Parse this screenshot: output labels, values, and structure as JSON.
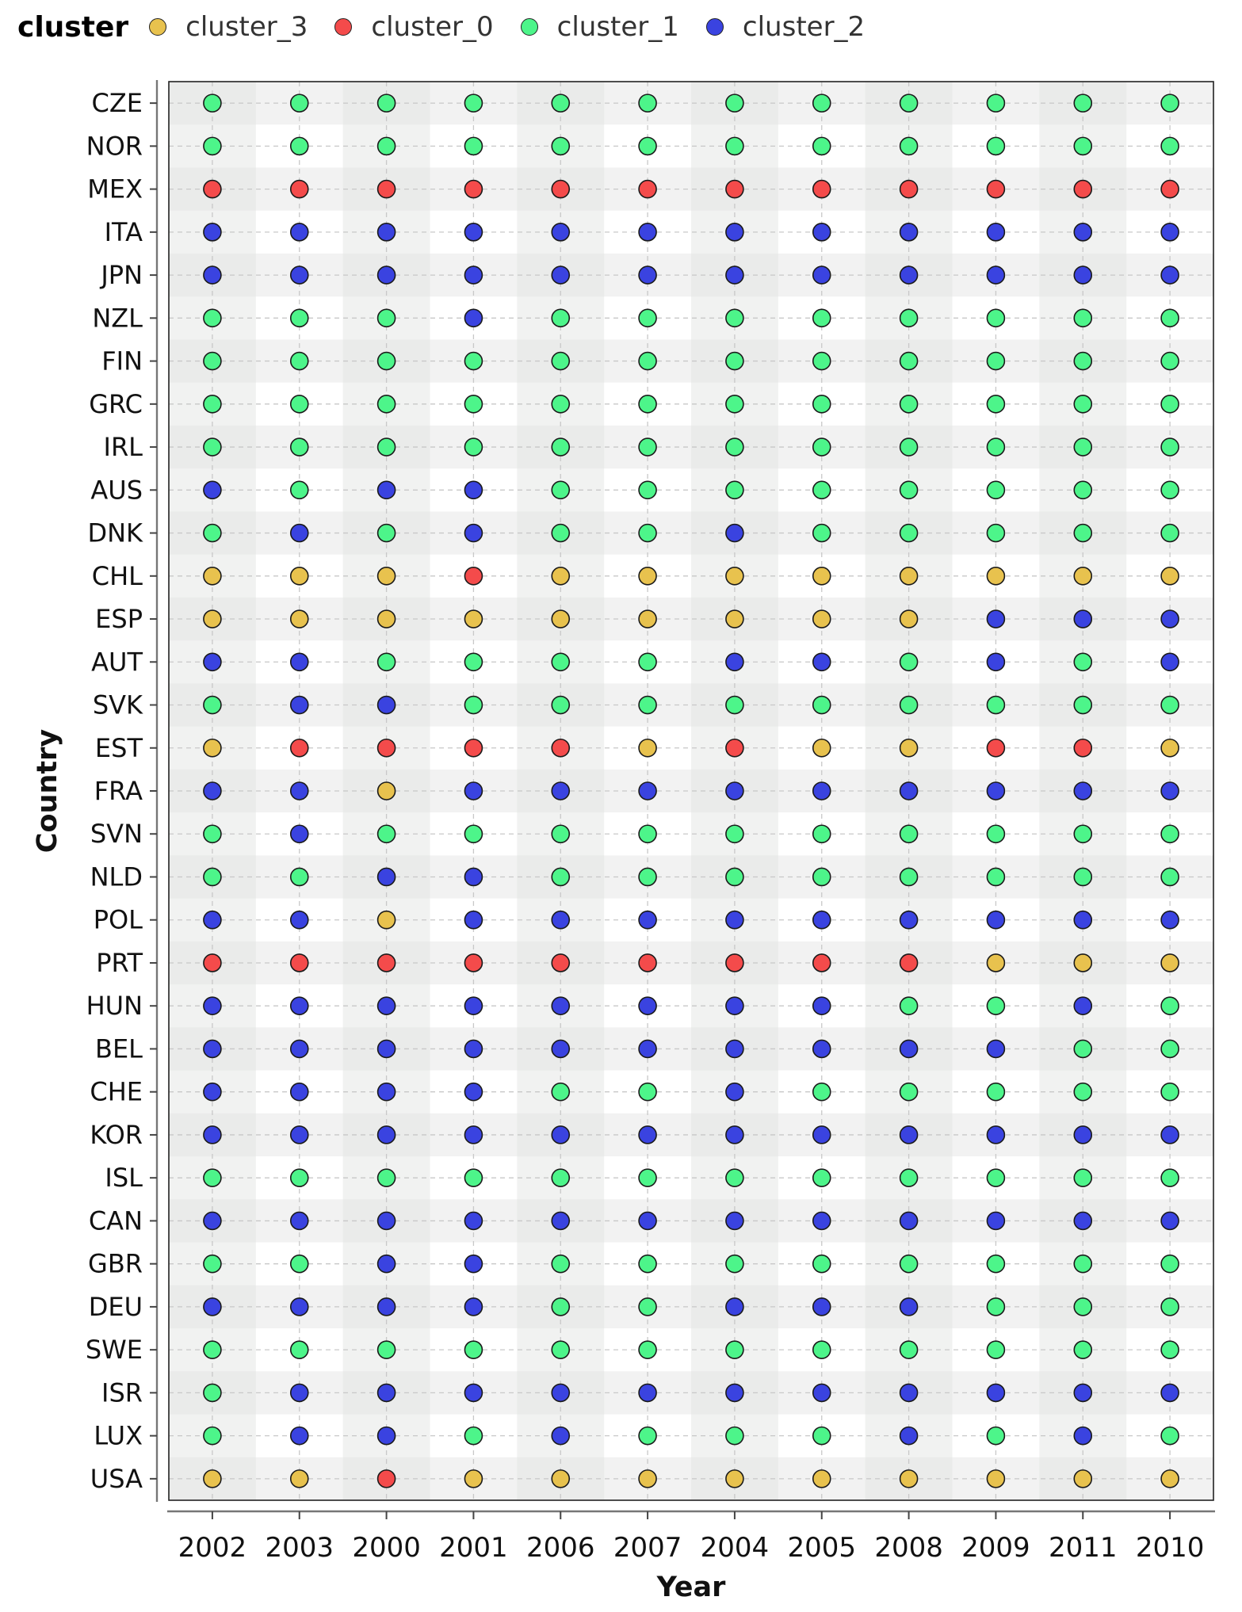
{
  "chart_data": {
    "type": "scatter",
    "title": "",
    "xlabel": "Year",
    "ylabel": "Country",
    "legend": {
      "title": "cluster",
      "position": "top-left",
      "entries": [
        {
          "name": "cluster_3",
          "color": "#e8c24e"
        },
        {
          "name": "cluster_0",
          "color": "#f44b4b"
        },
        {
          "name": "cluster_1",
          "color": "#4df58a"
        },
        {
          "name": "cluster_2",
          "color": "#3a43e0"
        }
      ]
    },
    "grid": true,
    "x_categories": [
      "2002",
      "2003",
      "2000",
      "2001",
      "2006",
      "2007",
      "2004",
      "2005",
      "2008",
      "2009",
      "2011",
      "2010"
    ],
    "y_categories": [
      "CZE",
      "NOR",
      "MEX",
      "ITA",
      "JPN",
      "NZL",
      "FIN",
      "GRC",
      "IRL",
      "AUS",
      "DNK",
      "CHL",
      "ESP",
      "AUT",
      "SVK",
      "EST",
      "FRA",
      "SVN",
      "NLD",
      "POL",
      "PRT",
      "HUN",
      "BEL",
      "CHE",
      "KOR",
      "ISL",
      "CAN",
      "GBR",
      "DEU",
      "SWE",
      "ISR",
      "LUX",
      "USA"
    ],
    "series": [
      {
        "country": "CZE",
        "clusters": [
          1,
          1,
          1,
          1,
          1,
          1,
          1,
          1,
          1,
          1,
          1,
          1
        ]
      },
      {
        "country": "NOR",
        "clusters": [
          1,
          1,
          1,
          1,
          1,
          1,
          1,
          1,
          1,
          1,
          1,
          1
        ]
      },
      {
        "country": "MEX",
        "clusters": [
          0,
          0,
          0,
          0,
          0,
          0,
          0,
          0,
          0,
          0,
          0,
          0
        ]
      },
      {
        "country": "ITA",
        "clusters": [
          2,
          2,
          2,
          2,
          2,
          2,
          2,
          2,
          2,
          2,
          2,
          2
        ]
      },
      {
        "country": "JPN",
        "clusters": [
          2,
          2,
          2,
          2,
          2,
          2,
          2,
          2,
          2,
          2,
          2,
          2
        ]
      },
      {
        "country": "NZL",
        "clusters": [
          1,
          1,
          1,
          2,
          1,
          1,
          1,
          1,
          1,
          1,
          1,
          1
        ]
      },
      {
        "country": "FIN",
        "clusters": [
          1,
          1,
          1,
          1,
          1,
          1,
          1,
          1,
          1,
          1,
          1,
          1
        ]
      },
      {
        "country": "GRC",
        "clusters": [
          1,
          1,
          1,
          1,
          1,
          1,
          1,
          1,
          1,
          1,
          1,
          1
        ]
      },
      {
        "country": "IRL",
        "clusters": [
          1,
          1,
          1,
          1,
          1,
          1,
          1,
          1,
          1,
          1,
          1,
          1
        ]
      },
      {
        "country": "AUS",
        "clusters": [
          2,
          1,
          2,
          2,
          1,
          1,
          1,
          1,
          1,
          1,
          1,
          1
        ]
      },
      {
        "country": "DNK",
        "clusters": [
          1,
          2,
          1,
          2,
          1,
          1,
          2,
          1,
          1,
          1,
          1,
          1
        ]
      },
      {
        "country": "CHL",
        "clusters": [
          3,
          3,
          3,
          0,
          3,
          3,
          3,
          3,
          3,
          3,
          3,
          3
        ]
      },
      {
        "country": "ESP",
        "clusters": [
          3,
          3,
          3,
          3,
          3,
          3,
          3,
          3,
          3,
          2,
          2,
          2
        ]
      },
      {
        "country": "AUT",
        "clusters": [
          2,
          2,
          1,
          1,
          1,
          1,
          2,
          2,
          1,
          2,
          1,
          2
        ]
      },
      {
        "country": "SVK",
        "clusters": [
          1,
          2,
          2,
          1,
          1,
          1,
          1,
          1,
          1,
          1,
          1,
          1
        ]
      },
      {
        "country": "EST",
        "clusters": [
          3,
          0,
          0,
          0,
          0,
          3,
          0,
          3,
          3,
          0,
          0,
          3
        ]
      },
      {
        "country": "FRA",
        "clusters": [
          2,
          2,
          3,
          2,
          2,
          2,
          2,
          2,
          2,
          2,
          2,
          2
        ]
      },
      {
        "country": "SVN",
        "clusters": [
          1,
          2,
          1,
          1,
          1,
          1,
          1,
          1,
          1,
          1,
          1,
          1
        ]
      },
      {
        "country": "NLD",
        "clusters": [
          1,
          1,
          2,
          2,
          1,
          1,
          1,
          1,
          1,
          1,
          1,
          1
        ]
      },
      {
        "country": "POL",
        "clusters": [
          2,
          2,
          3,
          2,
          2,
          2,
          2,
          2,
          2,
          2,
          2,
          2
        ]
      },
      {
        "country": "PRT",
        "clusters": [
          0,
          0,
          0,
          0,
          0,
          0,
          0,
          0,
          0,
          3,
          3,
          3
        ]
      },
      {
        "country": "HUN",
        "clusters": [
          2,
          2,
          2,
          2,
          2,
          2,
          2,
          2,
          1,
          1,
          2,
          1
        ]
      },
      {
        "country": "BEL",
        "clusters": [
          2,
          2,
          2,
          2,
          2,
          2,
          2,
          2,
          2,
          2,
          1,
          1
        ]
      },
      {
        "country": "CHE",
        "clusters": [
          2,
          2,
          2,
          2,
          1,
          1,
          2,
          1,
          1,
          1,
          1,
          1
        ]
      },
      {
        "country": "KOR",
        "clusters": [
          2,
          2,
          2,
          2,
          2,
          2,
          2,
          2,
          2,
          2,
          2,
          2
        ]
      },
      {
        "country": "ISL",
        "clusters": [
          1,
          1,
          1,
          1,
          1,
          1,
          1,
          1,
          1,
          1,
          1,
          1
        ]
      },
      {
        "country": "CAN",
        "clusters": [
          2,
          2,
          2,
          2,
          2,
          2,
          2,
          2,
          2,
          2,
          2,
          2
        ]
      },
      {
        "country": "GBR",
        "clusters": [
          1,
          1,
          2,
          2,
          1,
          1,
          1,
          1,
          1,
          1,
          1,
          1
        ]
      },
      {
        "country": "DEU",
        "clusters": [
          2,
          2,
          2,
          2,
          1,
          1,
          2,
          2,
          2,
          1,
          1,
          1
        ]
      },
      {
        "country": "SWE",
        "clusters": [
          1,
          1,
          1,
          1,
          1,
          1,
          1,
          1,
          1,
          1,
          1,
          1
        ]
      },
      {
        "country": "ISR",
        "clusters": [
          1,
          2,
          2,
          2,
          2,
          2,
          2,
          2,
          2,
          2,
          2,
          2
        ]
      },
      {
        "country": "LUX",
        "clusters": [
          1,
          2,
          2,
          1,
          2,
          1,
          1,
          1,
          2,
          1,
          2,
          1
        ]
      },
      {
        "country": "USA",
        "clusters": [
          3,
          3,
          0,
          3,
          3,
          3,
          3,
          3,
          3,
          3,
          3,
          3
        ]
      }
    ]
  }
}
